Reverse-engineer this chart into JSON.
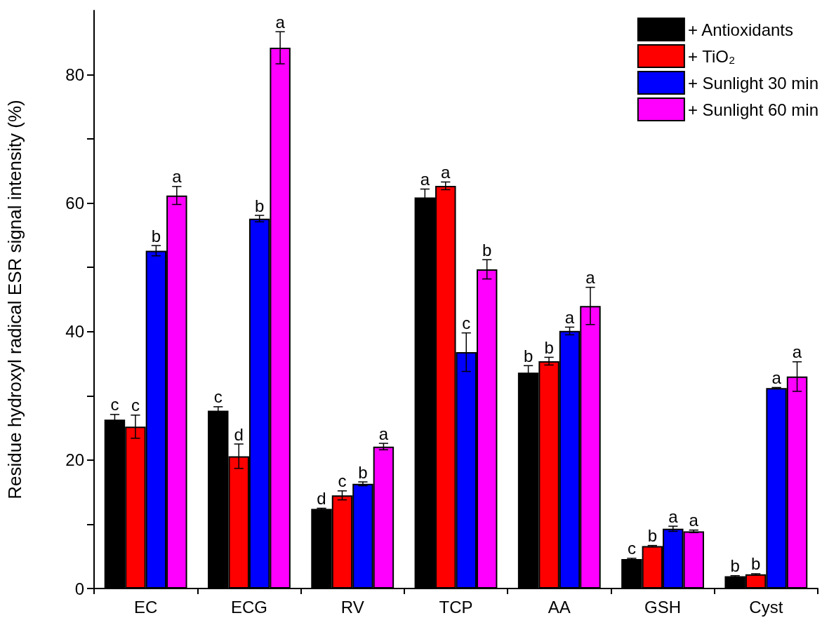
{
  "chart_data": {
    "type": "bar",
    "ylabel": "Residue hydroxyl radical ESR signal intensity (%)",
    "categories": [
      "EC",
      "ECG",
      "RV",
      "TCP",
      "AA",
      "GSH",
      "Cyst"
    ],
    "series": [
      {
        "name": "+ Antioxidants",
        "color": "#000000",
        "values": [
          26.3,
          27.7,
          12.4,
          60.9,
          33.6,
          4.6,
          1.9
        ],
        "errors": [
          0.8,
          0.6,
          0.1,
          1.3,
          1.1,
          0.1,
          0.1
        ],
        "value_labels": [
          "c",
          "c",
          "d",
          "a",
          "b",
          "c",
          "b"
        ]
      },
      {
        "name": "+ TiO₂",
        "color": "#ff0000",
        "values": [
          25.2,
          20.6,
          14.5,
          62.7,
          35.4,
          6.6,
          2.2
        ],
        "errors": [
          1.8,
          1.9,
          0.7,
          0.6,
          0.6,
          0.1,
          0.1
        ],
        "value_labels": [
          "c",
          "d",
          "c",
          "a",
          "b",
          "b",
          "b"
        ]
      },
      {
        "name": "+ Sunlight 30 min",
        "color": "#0000ff",
        "values": [
          52.6,
          57.6,
          16.3,
          36.8,
          40.1,
          9.3,
          31.2
        ],
        "errors": [
          0.8,
          0.5,
          0.3,
          3.0,
          0.6,
          0.4,
          0.1
        ],
        "value_labels": [
          "b",
          "b",
          "b",
          "c",
          "a",
          "a",
          "a"
        ]
      },
      {
        "name": "+ Sunlight 60 min",
        "color": "#ff00ff",
        "values": [
          61.2,
          84.2,
          22.1,
          49.7,
          44.0,
          8.9,
          33.0
        ],
        "errors": [
          1.4,
          2.5,
          0.5,
          1.5,
          2.9,
          0.2,
          2.3
        ],
        "value_labels": [
          "a",
          "a",
          "a",
          "b",
          "a",
          "a",
          "a"
        ]
      }
    ],
    "ylim": [
      0,
      90
    ],
    "yticks": [
      0,
      {
        "value": 10,
        "label": null
      },
      20,
      {
        "value": 30,
        "label": null
      },
      40,
      {
        "value": 50,
        "label": null
      },
      60,
      {
        "value": 70,
        "label": null
      },
      80
    ],
    "grid": false,
    "legend": "top right"
  }
}
